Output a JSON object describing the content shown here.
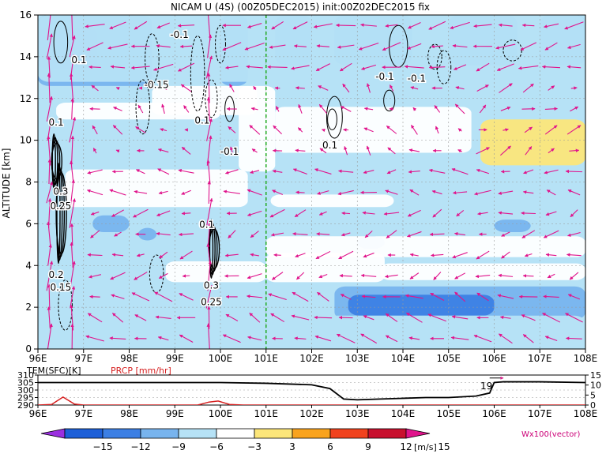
{
  "chart_data": [
    {
      "type": "heatmap",
      "title": "NICAM U (4S) (00Z05DEC2015) init:00Z02DEC2015 fix",
      "ylabel": "ALTITUDE [km]",
      "xlabel": "",
      "x_ticks": [
        "96E",
        "97E",
        "98E",
        "99E",
        "100E",
        "101E",
        "102E",
        "103E",
        "104E",
        "105E",
        "106E",
        "107E",
        "108E"
      ],
      "y_ticks": [
        "0",
        "2",
        "4",
        "6",
        "8",
        "10",
        "12",
        "14",
        "16"
      ],
      "xlim": [
        96,
        108
      ],
      "ylim": [
        0,
        16
      ],
      "marker_line_x": 101,
      "contour_labels": [
        {
          "text": "-0.1",
          "x": 99.1,
          "y": 14.9
        },
        {
          "text": "0.1",
          "x": 96.9,
          "y": 13.7
        },
        {
          "text": "-0.15",
          "x": 98.6,
          "y": 12.5
        },
        {
          "text": "0.1",
          "x": 99.6,
          "y": 10.8
        },
        {
          "text": "-0.1",
          "x": 100.2,
          "y": 9.3
        },
        {
          "text": "-0.1",
          "x": 103.6,
          "y": 12.9
        },
        {
          "text": "-0.1",
          "x": 104.3,
          "y": 12.8
        },
        {
          "text": "0.1",
          "x": 102.4,
          "y": 9.6
        },
        {
          "text": "0.1",
          "x": 96.4,
          "y": 10.7
        },
        {
          "text": "0.3",
          "x": 96.5,
          "y": 7.4
        },
        {
          "text": "0.25",
          "x": 96.5,
          "y": 6.7
        },
        {
          "text": "0.2",
          "x": 96.4,
          "y": 3.4
        },
        {
          "text": "0.15",
          "x": 96.5,
          "y": 2.8
        },
        {
          "text": "0.1",
          "x": 99.7,
          "y": 5.8
        },
        {
          "text": "0.3",
          "x": 99.8,
          "y": 2.9
        },
        {
          "text": "0.25",
          "x": 99.8,
          "y": 2.1
        }
      ],
      "field_regions": [
        {
          "band": -12,
          "x": [
            96.0,
            97.3
          ],
          "y": [
            13.4,
            15.4
          ]
        },
        {
          "band": -9,
          "x": [
            96.0,
            98.5
          ],
          "y": [
            12.6,
            16.0
          ]
        },
        {
          "band": -9,
          "x": [
            100.0,
            100.6
          ],
          "y": [
            12.6,
            16.0
          ]
        },
        {
          "band": -9,
          "x": [
            101.2,
            102.0
          ],
          "y": [
            13.6,
            16.0
          ]
        },
        {
          "band": -9,
          "x": [
            102.5,
            104.2
          ],
          "y": [
            13.6,
            16.0
          ]
        },
        {
          "band": -9,
          "x": [
            105.0,
            106.5
          ],
          "y": [
            13.6,
            16.0
          ]
        },
        {
          "band": -9,
          "x": [
            107.0,
            108.0
          ],
          "y": [
            13.6,
            16.0
          ]
        },
        {
          "band": -6,
          "x": [
            96.0,
            108.0
          ],
          "y": [
            12.8,
            16.0
          ]
        },
        {
          "band": 3,
          "x": [
            105.7,
            108.0
          ],
          "y": [
            8.8,
            11.0
          ]
        },
        {
          "band": -6,
          "x": [
            101.0,
            108.0
          ],
          "y": [
            7.2,
            8.4
          ]
        },
        {
          "band": -6,
          "x": [
            101.5,
            108.0
          ],
          "y": [
            5.6,
            6.8
          ]
        },
        {
          "band": -9,
          "x": [
            106.0,
            106.8
          ],
          "y": [
            5.6,
            6.2
          ]
        },
        {
          "band": -6,
          "x": [
            96.0,
            101.0
          ],
          "y": [
            4.6,
            6.6
          ]
        },
        {
          "band": -9,
          "x": [
            97.2,
            98.0
          ],
          "y": [
            5.6,
            6.4
          ]
        },
        {
          "band": -9,
          "x": [
            98.2,
            98.6
          ],
          "y": [
            5.2,
            5.8
          ]
        },
        {
          "band": -9,
          "x": [
            103.0,
            103.6
          ],
          "y": [
            4.8,
            5.4
          ]
        },
        {
          "band": -9,
          "x": [
            102.5,
            108.0
          ],
          "y": [
            1.4,
            3.0
          ]
        },
        {
          "band": -12,
          "x": [
            102.8,
            106.0
          ],
          "y": [
            1.6,
            2.6
          ]
        },
        {
          "band": -6,
          "x": [
            96.0,
            108.0
          ],
          "y": [
            0.0,
            1.6
          ]
        }
      ],
      "vector_label": "Wx100(vector)",
      "colorbar": {
        "unit": "[m/s]",
        "ticks": [
          "−15",
          "−12",
          "−9",
          "−6",
          "−3",
          "3",
          "6",
          "9",
          "12",
          "15"
        ],
        "bands": [
          {
            "color": "#9b30e0"
          },
          {
            "color": "#1d5fd8"
          },
          {
            "color": "#3c7fe4"
          },
          {
            "color": "#78b4ee"
          },
          {
            "color": "#b6e2f6"
          },
          {
            "color": "#ffffff"
          },
          {
            "color": "#fce67a"
          },
          {
            "color": "#f9a31d"
          },
          {
            "color": "#f1421d"
          },
          {
            "color": "#c8102e"
          },
          {
            "color": "#e0148c"
          }
        ]
      }
    },
    {
      "type": "line",
      "title": "",
      "x_ticks": [
        "96E",
        "97E",
        "98E",
        "99E",
        "100E",
        "101E",
        "102E",
        "103E",
        "104E",
        "105E",
        "106E",
        "107E",
        "108E"
      ],
      "xlim": [
        96,
        108
      ],
      "left_axis": {
        "label": "TEM(SFC)[K]",
        "ticks": [
          "290",
          "295",
          "300",
          "305",
          "310"
        ],
        "range": [
          290,
          310
        ]
      },
      "right_axis": {
        "label": "PRCP [mm/hr]",
        "ticks": [
          "0",
          "5",
          "10",
          "15"
        ],
        "range": [
          0,
          15
        ]
      },
      "annotation": "19",
      "series": [
        {
          "name": "TEM(SFC)[K]",
          "color": "#000000",
          "x": [
            96.0,
            96.5,
            97.0,
            98.0,
            99.0,
            100.0,
            101.0,
            102.0,
            102.4,
            102.7,
            103.0,
            103.5,
            104.0,
            104.5,
            105.0,
            105.6,
            105.9,
            106.0,
            106.2,
            107.0,
            108.0
          ],
          "y": [
            305,
            305,
            305,
            305,
            305,
            305,
            304.5,
            303.5,
            301,
            294,
            293.5,
            294,
            294.5,
            295,
            295,
            296,
            298,
            305,
            305.5,
            305.5,
            305
          ]
        },
        {
          "name": "PRCP [mm/hr]",
          "color": "#d62020",
          "x": [
            96.0,
            96.3,
            96.55,
            96.8,
            97.0,
            99.5,
            99.75,
            99.95,
            100.2,
            100.5,
            108.0
          ],
          "y": [
            0,
            0.3,
            4.0,
            0.5,
            0,
            0,
            1.5,
            2.0,
            0.3,
            0,
            0
          ]
        }
      ]
    }
  ]
}
